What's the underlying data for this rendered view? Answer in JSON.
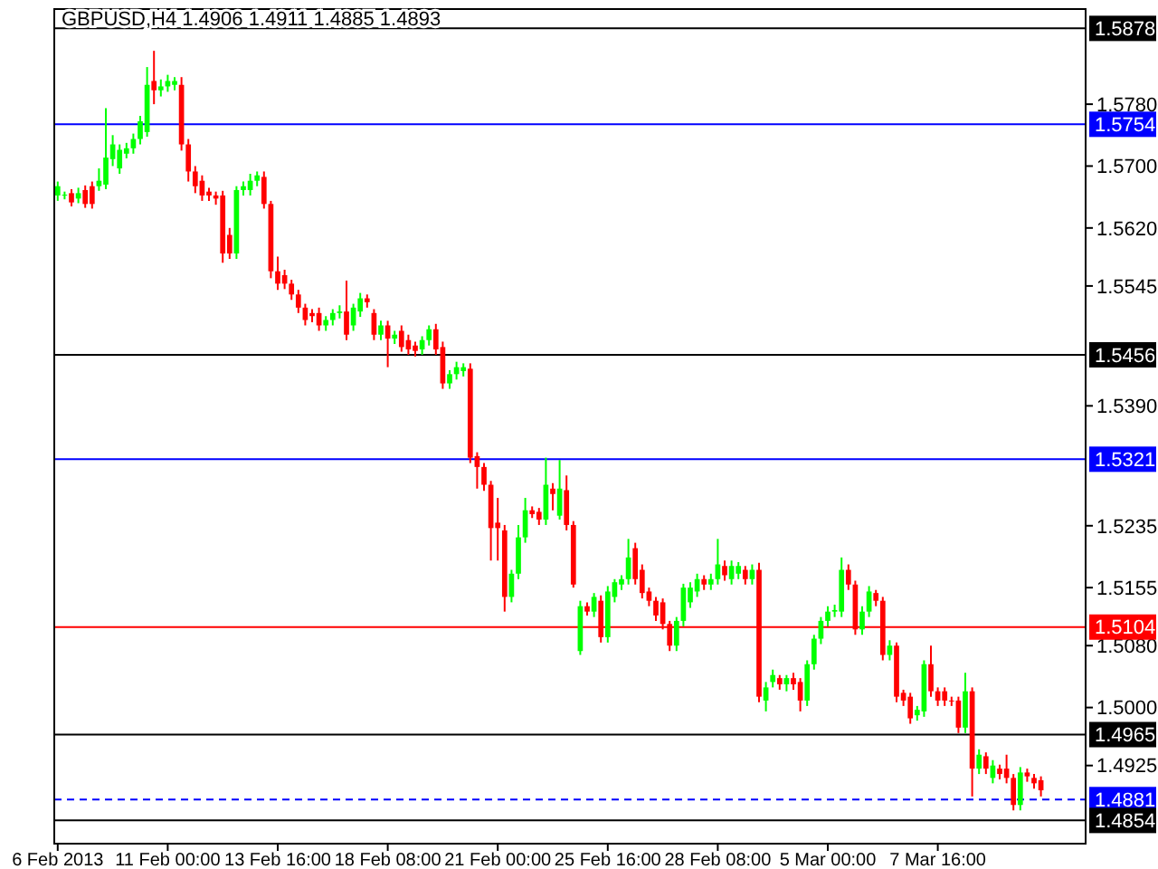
{
  "chart_data": {
    "type": "candlestick",
    "title": "GBPUSD,H4  1.4906 1.4911 1.4885 1.4893",
    "categories": [
      "6 Feb 2013",
      null,
      null,
      null,
      null,
      null,
      null,
      null,
      null,
      null,
      null,
      null,
      null,
      null,
      null,
      null,
      "11 Feb 00:00",
      null,
      null,
      null,
      null,
      null,
      null,
      null,
      null,
      null,
      null,
      null,
      null,
      null,
      null,
      null,
      "13 Feb 16:00",
      null,
      null,
      null,
      null,
      null,
      null,
      null,
      null,
      null,
      null,
      null,
      null,
      null,
      null,
      null,
      "18 Feb 08:00",
      null,
      null,
      null,
      null,
      null,
      null,
      null,
      null,
      null,
      null,
      null,
      null,
      null,
      null,
      null,
      "21 Feb 00:00",
      null,
      null,
      null,
      null,
      null,
      null,
      null,
      null,
      null,
      null,
      null,
      null,
      null,
      null,
      null,
      "25 Feb 16:00",
      null,
      null,
      null,
      null,
      null,
      null,
      null,
      null,
      null,
      null,
      null,
      null,
      null,
      null,
      null,
      "28 Feb 08:00",
      null,
      null,
      null,
      null,
      null,
      null,
      null,
      null,
      null,
      null,
      null,
      null,
      null,
      null,
      null,
      "5 Mar 00:00",
      null,
      null,
      null,
      null,
      null,
      null,
      null,
      null,
      null,
      null,
      null,
      null,
      null,
      null,
      null,
      "7 Mar 16:00",
      null,
      null,
      null,
      null,
      null,
      null,
      null,
      null,
      null,
      null,
      null,
      null,
      null,
      null,
      null,
      null,
      null,
      null,
      null,
      null,
      null
    ],
    "ohlc": [
      [
        1.5662,
        1.568,
        1.5655,
        1.5674
      ],
      [
        1.5662,
        1.5667,
        1.5657,
        1.5663
      ],
      [
        1.5665,
        1.567,
        1.5648,
        1.5653
      ],
      [
        1.5658,
        1.5672,
        1.5652,
        1.5665
      ],
      [
        1.5669,
        1.5675,
        1.5646,
        1.5651
      ],
      [
        1.5674,
        1.568,
        1.5645,
        1.5651
      ],
      [
        1.5674,
        1.5697,
        1.5668,
        1.5681
      ],
      [
        1.5676,
        1.5775,
        1.567,
        1.5711
      ],
      [
        1.5709,
        1.574,
        1.57,
        1.5728
      ],
      [
        1.5697,
        1.5728,
        1.569,
        1.5721
      ],
      [
        1.5716,
        1.573,
        1.571,
        1.5723
      ],
      [
        1.5723,
        1.5742,
        1.5716,
        1.5735
      ],
      [
        1.5735,
        1.5765,
        1.5728,
        1.5758
      ],
      [
        1.5744,
        1.5828,
        1.5738,
        1.5805
      ],
      [
        1.581,
        1.5849,
        1.578,
        1.5798
      ],
      [
        1.5798,
        1.5812,
        1.579,
        1.5803
      ],
      [
        1.5803,
        1.5818,
        1.5796,
        1.581
      ],
      [
        1.5805,
        1.5815,
        1.5798,
        1.581
      ],
      [
        1.5805,
        1.5815,
        1.572,
        1.5728
      ],
      [
        1.5728,
        1.5735,
        1.568,
        1.5693
      ],
      [
        1.5693,
        1.57,
        1.5665,
        1.5674
      ],
      [
        1.5681,
        1.5688,
        1.5655,
        1.5662
      ],
      [
        1.5667,
        1.5672,
        1.5655,
        1.5662
      ],
      [
        1.5662,
        1.5667,
        1.565,
        1.5658
      ],
      [
        1.5662,
        1.5668,
        1.5575,
        1.5587
      ],
      [
        1.5611,
        1.562,
        1.558,
        1.5587
      ],
      [
        1.5587,
        1.5674,
        1.558,
        1.5669
      ],
      [
        1.5669,
        1.568,
        1.5662,
        1.5674
      ],
      [
        1.5669,
        1.569,
        1.5662,
        1.5681
      ],
      [
        1.5681,
        1.5693,
        1.5674,
        1.5688
      ],
      [
        1.5686,
        1.5693,
        1.5645,
        1.5651
      ],
      [
        1.5651,
        1.5655,
        1.5555,
        1.5564
      ],
      [
        1.5564,
        1.5583,
        1.554,
        1.5548
      ],
      [
        1.5559,
        1.5566,
        1.5541,
        1.5548
      ],
      [
        1.5548,
        1.5553,
        1.5527,
        1.5534
      ],
      [
        1.5534,
        1.554,
        1.551,
        1.5517
      ],
      [
        1.5517,
        1.5522,
        1.5494,
        1.5501
      ],
      [
        1.551,
        1.5515,
        1.5498,
        1.5506
      ],
      [
        1.551,
        1.5517,
        1.5487,
        1.5494
      ],
      [
        1.5494,
        1.5506,
        1.5487,
        1.5501
      ],
      [
        1.5501,
        1.5515,
        1.5494,
        1.551
      ],
      [
        1.551,
        1.552,
        1.5503,
        1.5512
      ],
      [
        1.5512,
        1.5552,
        1.5475,
        1.5482
      ],
      [
        1.5494,
        1.5522,
        1.5487,
        1.5517
      ],
      [
        1.5512,
        1.5536,
        1.5505,
        1.5529
      ],
      [
        1.5529,
        1.5534,
        1.5517,
        1.5524
      ],
      [
        1.551,
        1.5515,
        1.5475,
        1.5482
      ],
      [
        1.5482,
        1.55,
        1.5475,
        1.5494
      ],
      [
        1.5494,
        1.55,
        1.544,
        1.5477
      ],
      [
        1.5477,
        1.5487,
        1.547,
        1.5482
      ],
      [
        1.5487,
        1.5494,
        1.546,
        1.5466
      ],
      [
        1.5475,
        1.5482,
        1.5456,
        1.5463
      ],
      [
        1.5468,
        1.5473,
        1.5454,
        1.5461
      ],
      [
        1.5463,
        1.548,
        1.5456,
        1.5475
      ],
      [
        1.5475,
        1.5494,
        1.5468,
        1.5489
      ],
      [
        1.5489,
        1.5496,
        1.5456,
        1.5463
      ],
      [
        1.5466,
        1.5473,
        1.5412,
        1.5419
      ],
      [
        1.5419,
        1.5436,
        1.5412,
        1.5431
      ],
      [
        1.5431,
        1.5447,
        1.5424,
        1.544
      ],
      [
        1.5435,
        1.5445,
        1.5428,
        1.544
      ],
      [
        1.5438,
        1.5445,
        1.5316,
        1.5323
      ],
      [
        1.5325,
        1.533,
        1.5283,
        1.5311
      ],
      [
        1.5311,
        1.5316,
        1.528,
        1.5288
      ],
      [
        1.5288,
        1.5293,
        1.519,
        1.5232
      ],
      [
        1.5239,
        1.5271,
        1.519,
        1.5232
      ],
      [
        1.5229,
        1.5236,
        1.5124,
        1.5143
      ],
      [
        1.5143,
        1.5178,
        1.5136,
        1.5173
      ],
      [
        1.5173,
        1.5236,
        1.5166,
        1.522
      ],
      [
        1.522,
        1.5271,
        1.5213,
        1.5255
      ],
      [
        1.5255,
        1.526,
        1.5245,
        1.525
      ],
      [
        1.5253,
        1.5258,
        1.5236,
        1.5243
      ],
      [
        1.5243,
        1.5323,
        1.5236,
        1.5288
      ],
      [
        1.5283,
        1.529,
        1.5255,
        1.5276
      ],
      [
        1.5248,
        1.532,
        1.5243,
        1.5283
      ],
      [
        1.5281,
        1.53,
        1.5229,
        1.5236
      ],
      [
        1.5236,
        1.5241,
        1.5155,
        1.5159
      ],
      [
        1.5073,
        1.5138,
        1.5068,
        1.5131
      ],
      [
        1.5131,
        1.5136,
        1.5119,
        1.5124
      ],
      [
        1.5124,
        1.5148,
        1.5117,
        1.5143
      ],
      [
        1.5138,
        1.5145,
        1.5084,
        1.5091
      ],
      [
        1.5091,
        1.5157,
        1.5084,
        1.515
      ],
      [
        1.5143,
        1.5166,
        1.5136,
        1.5162
      ],
      [
        1.5159,
        1.5171,
        1.5152,
        1.5166
      ],
      [
        1.5166,
        1.5218,
        1.5159,
        1.5194
      ],
      [
        1.5206,
        1.5213,
        1.5159,
        1.5166
      ],
      [
        1.5178,
        1.5185,
        1.5141,
        1.5148
      ],
      [
        1.515,
        1.5155,
        1.5131,
        1.5138
      ],
      [
        1.5138,
        1.5143,
        1.5112,
        1.5119
      ],
      [
        1.5136,
        1.5141,
        1.5101,
        1.5108
      ],
      [
        1.5108,
        1.5112,
        1.5073,
        1.508
      ],
      [
        1.508,
        1.5117,
        1.5073,
        1.5112
      ],
      [
        1.5112,
        1.516,
        1.5105,
        1.5155
      ],
      [
        1.5136,
        1.5162,
        1.5129,
        1.5155
      ],
      [
        1.515,
        1.5173,
        1.5143,
        1.5166
      ],
      [
        1.5166,
        1.5171,
        1.5152,
        1.5159
      ],
      [
        1.5159,
        1.5173,
        1.5152,
        1.5166
      ],
      [
        1.5166,
        1.5218,
        1.5159,
        1.5185
      ],
      [
        1.5183,
        1.519,
        1.5164,
        1.5171
      ],
      [
        1.5166,
        1.519,
        1.5159,
        1.5183
      ],
      [
        1.5173,
        1.5188,
        1.5166,
        1.5183
      ],
      [
        1.5178,
        1.5183,
        1.5159,
        1.5166
      ],
      [
        1.5166,
        1.5185,
        1.5159,
        1.5178
      ],
      [
        1.5178,
        1.5187,
        1.5007,
        1.5014
      ],
      [
        1.5009,
        1.5033,
        1.4995,
        1.5026
      ],
      [
        1.5033,
        1.5049,
        1.5026,
        1.5042
      ],
      [
        1.5038,
        1.5042,
        1.5023,
        1.503
      ],
      [
        1.503,
        1.5042,
        1.5021,
        1.5038
      ],
      [
        1.5038,
        1.5045,
        1.5023,
        1.503
      ],
      [
        1.5033,
        1.5038,
        1.4995,
        1.5009
      ],
      [
        1.5009,
        1.5061,
        1.5002,
        1.5056
      ],
      [
        1.5056,
        1.5094,
        1.5049,
        1.5089
      ],
      [
        1.5089,
        1.5117,
        1.5082,
        1.5112
      ],
      [
        1.5112,
        1.5131,
        1.5105,
        1.5124
      ],
      [
        1.5124,
        1.5133,
        1.5117,
        1.5126
      ],
      [
        1.5124,
        1.5194,
        1.5117,
        1.5178
      ],
      [
        1.5178,
        1.5185,
        1.5152,
        1.5159
      ],
      [
        1.5159,
        1.5164,
        1.5094,
        1.5101
      ],
      [
        1.5101,
        1.5131,
        1.5094,
        1.5124
      ],
      [
        1.5124,
        1.5157,
        1.5117,
        1.515
      ],
      [
        1.5148,
        1.5152,
        1.5131,
        1.5138
      ],
      [
        1.5138,
        1.5143,
        1.5061,
        1.5068
      ],
      [
        1.5068,
        1.5087,
        1.5061,
        1.508
      ],
      [
        1.508,
        1.5084,
        1.5007,
        1.5014
      ],
      [
        1.5019,
        1.5023,
        1.5002,
        1.5009
      ],
      [
        1.5014,
        1.5019,
        1.4979,
        1.4986
      ],
      [
        1.499,
        1.5002,
        1.4983,
        1.4997
      ],
      [
        1.4995,
        1.5061,
        1.4988,
        1.5056
      ],
      [
        1.5056,
        1.508,
        1.5014,
        1.5021
      ],
      [
        1.5021,
        1.5026,
        1.5002,
        1.5009
      ],
      [
        1.5021,
        1.5026,
        1.5002,
        1.5009
      ],
      [
        1.5009,
        1.5014,
        1.5002,
        1.5008
      ],
      [
        1.5009,
        1.5014,
        1.4967,
        1.4974
      ],
      [
        1.4974,
        1.5045,
        1.4967,
        1.5021
      ],
      [
        1.5021,
        1.5026,
        1.4885,
        1.4921
      ],
      [
        1.4921,
        1.4946,
        1.4914,
        1.4939
      ],
      [
        1.4937,
        1.4942,
        1.4914,
        1.4921
      ],
      [
        1.4909,
        1.4932,
        1.4902,
        1.4925
      ],
      [
        1.4921,
        1.4926,
        1.4907,
        1.4914
      ],
      [
        1.4921,
        1.4939,
        1.4902,
        1.4909
      ],
      [
        1.4909,
        1.4914,
        1.4867,
        1.4874
      ],
      [
        1.4874,
        1.4923,
        1.4867,
        1.4916
      ],
      [
        1.4916,
        1.4921,
        1.4904,
        1.4911
      ],
      [
        1.4909,
        1.4914,
        1.4895,
        1.4902
      ],
      [
        1.4906,
        1.4911,
        1.4885,
        1.4893
      ],
      null,
      null,
      null,
      null,
      null,
      null
    ],
    "ylim": [
      1.4824,
      1.5903
    ],
    "yticks": [
      {
        "value": 1.578,
        "label": "1.5780"
      },
      {
        "value": 1.57,
        "label": "1.5700"
      },
      {
        "value": 1.562,
        "label": "1.5620"
      },
      1.5545,
      {
        "value": 1.539,
        "label": "1.5390"
      },
      1.5235,
      1.5155,
      {
        "value": 1.508,
        "label": "1.5080"
      },
      {
        "value": 1.5,
        "label": "1.5000"
      },
      1.4925
    ],
    "ref_lines": [
      {
        "axis": "y",
        "value": 1.5878,
        "label": "1.5878",
        "color": "#000000",
        "line_style": "solid"
      },
      {
        "axis": "y",
        "value": 1.5754,
        "label": "1.5754",
        "color": "#0000ff",
        "line_style": "solid"
      },
      {
        "axis": "y",
        "value": 1.5456,
        "label": "1.5456",
        "color": "#000000",
        "line_style": "solid"
      },
      {
        "axis": "y",
        "value": 1.5321,
        "label": "1.5321",
        "color": "#0000ff",
        "line_style": "solid"
      },
      {
        "axis": "y",
        "value": 1.5104,
        "label": "1.5104",
        "color": "#ff0000",
        "line_style": "solid"
      },
      {
        "axis": "y",
        "value": 1.4965,
        "label": "1.4965",
        "color": "#000000",
        "line_style": "solid"
      },
      {
        "axis": "y",
        "value": 1.4881,
        "label": "1.4881",
        "color": "#0000ff",
        "line_style": "dashed"
      },
      {
        "axis": "y",
        "value": 1.4854,
        "label": "1.4854",
        "color": "#000000",
        "line_style": "solid"
      }
    ],
    "grid": false
  }
}
